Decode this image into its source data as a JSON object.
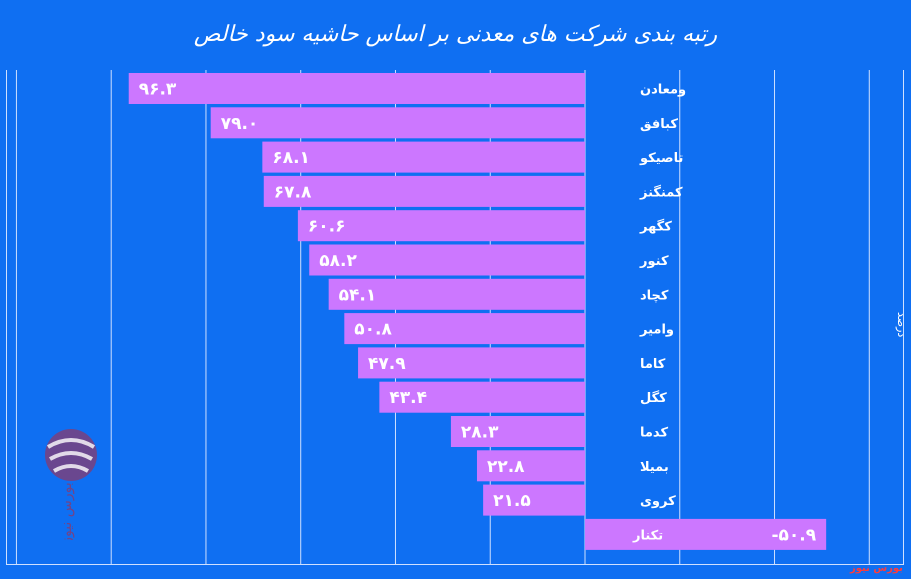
{
  "chart_data": {
    "type": "bar",
    "orientation": "horizontal",
    "title": "رتبه بندی شرکت های معدنی بر اساس حاشیه سود خالص",
    "ylabel": "درصد",
    "categories": [
      "ومعادن",
      "کبافق",
      "تاصیکو",
      "کمنگنز",
      "کگهر",
      "کنور",
      "کچاد",
      "وامیر",
      "کاما",
      "کگل",
      "کدما",
      "بمیلا",
      "کروی",
      "تکنار"
    ],
    "values": [
      96.3,
      79.0,
      68.1,
      67.8,
      60.6,
      58.2,
      54.1,
      50.8,
      47.9,
      43.4,
      28.3,
      22.8,
      21.5,
      -50.9
    ],
    "value_labels": [
      "۹۶.۳",
      "۷۹.۰",
      "۶۸.۱",
      "۶۷.۸",
      "۶۰.۶",
      "۵۸.۲",
      "۵۴.۱",
      "۵۰.۸",
      "۴۷.۹",
      "۴۳.۴",
      "۲۸.۳",
      "۲۲.۸",
      "۲۱.۵",
      "-۵۰.۹"
    ],
    "bar_color": "#cc77ff",
    "xlim": [
      -100,
      150
    ],
    "grid": true
  },
  "watermark": {
    "text": "بورس نیوز"
  },
  "source": {
    "text": "بورس نیوز"
  }
}
